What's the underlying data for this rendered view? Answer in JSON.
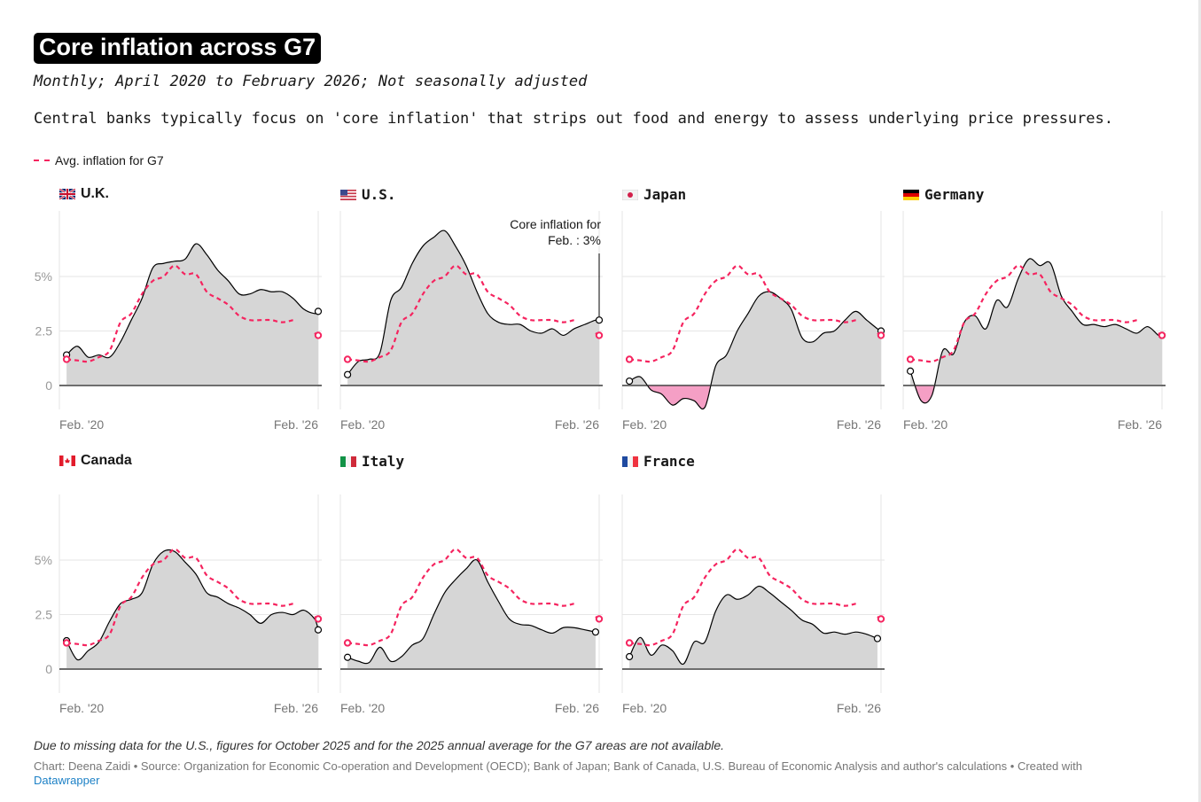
{
  "header": {
    "title": "Core inflation across G7",
    "subtitle": "Monthly; April 2020 to February 2026; Not seasonally adjusted",
    "description": "Central banks typically focus on 'core inflation' that strips out food and energy to assess underlying price pressures."
  },
  "legend": {
    "label": "Avg. inflation for G7",
    "color": "#f5245f"
  },
  "annotation": {
    "line1": "Core inflation for",
    "line2": "Feb. : 3%"
  },
  "footer": {
    "note": "Due to missing data for the U.S., figures for October 2025 and for the 2025 annual average for the G7 areas are not available.",
    "credit": "Chart: Deena Zaidi • Source: Organization for Economic Co-operation and Development (OECD); Bank of Japan; Bank of Canada, U.S. Bureau of Economic Analysis and author's calculations • Created with",
    "link": "Datawrapper"
  },
  "colors": {
    "area": "#d6d6d6",
    "negative_area": "#f59fc5",
    "line": "#000000",
    "g7_line": "#f5245f",
    "link": "#1d81c6"
  },
  "chart_data": {
    "type": "area",
    "layout": "small multiples, 4 columns",
    "ylim": [
      -1.1,
      8
    ],
    "y_ticks": [
      {
        "value": 0,
        "label": "0"
      },
      {
        "value": 2.5,
        "label": "2.5"
      },
      {
        "value": 5,
        "label": "5%"
      }
    ],
    "x_ticks": [
      {
        "date": "2020-02",
        "label": "Feb. '20"
      },
      {
        "date": "2026-02",
        "label": "Feb. '26"
      }
    ],
    "dates": [
      "2020-04",
      "2020-07",
      "2020-10",
      "2021-01",
      "2021-04",
      "2021-07",
      "2021-10",
      "2022-01",
      "2022-04",
      "2022-07",
      "2022-10",
      "2023-01",
      "2023-04",
      "2023-07",
      "2023-10",
      "2024-01",
      "2024-04",
      "2024-07",
      "2024-10",
      "2025-01",
      "2025-04",
      "2025-07",
      "2025-10",
      "2026-01",
      "2026-02"
    ],
    "g7_average": {
      "name": "Avg. inflation for G7",
      "values": [
        1.2,
        1.15,
        1.1,
        1.3,
        1.6,
        2.9,
        3.3,
        4.2,
        4.8,
        5.0,
        5.5,
        5.1,
        5.1,
        4.3,
        4.0,
        3.7,
        3.2,
        3.0,
        3.0,
        3.0,
        2.9,
        3.0,
        null,
        2.4,
        2.3
      ]
    },
    "panels": [
      {
        "country": "U.K.",
        "flag": "uk",
        "values": [
          1.4,
          1.8,
          1.3,
          1.4,
          1.3,
          2.0,
          3.0,
          4.0,
          5.4,
          5.6,
          5.7,
          5.8,
          6.5,
          6.0,
          5.3,
          4.8,
          4.2,
          4.2,
          4.4,
          4.3,
          4.3,
          4.0,
          3.5,
          3.3,
          3.4
        ]
      },
      {
        "country": "U.S.",
        "flag": "us",
        "values": [
          0.5,
          1.1,
          1.2,
          1.5,
          3.9,
          4.5,
          5.6,
          6.4,
          6.8,
          7.1,
          6.4,
          5.5,
          4.3,
          3.3,
          2.9,
          2.8,
          2.8,
          2.5,
          2.4,
          2.6,
          2.3,
          2.6,
          2.8,
          3.0,
          3.0
        ]
      },
      {
        "country": "Japan",
        "flag": "jp",
        "values": [
          0.2,
          0.4,
          -0.2,
          -0.4,
          -0.9,
          -0.6,
          -0.7,
          -1.0,
          0.9,
          1.4,
          2.5,
          3.3,
          4.1,
          4.3,
          4.0,
          3.5,
          2.2,
          2.0,
          2.4,
          2.5,
          3.0,
          3.4,
          3.0,
          2.6,
          2.5
        ]
      },
      {
        "country": "Germany",
        "flag": "de",
        "values": [
          0.66,
          -0.7,
          -0.45,
          1.6,
          1.45,
          2.9,
          3.2,
          2.6,
          3.9,
          3.6,
          4.9,
          5.8,
          5.5,
          5.6,
          4.1,
          3.4,
          2.8,
          2.8,
          2.7,
          2.8,
          2.6,
          2.4,
          2.7,
          2.3,
          2.3
        ]
      },
      {
        "country": "Canada",
        "flag": "ca",
        "values": [
          1.3,
          0.43,
          0.84,
          1.24,
          2.2,
          3.0,
          3.2,
          3.5,
          4.8,
          5.4,
          5.4,
          4.9,
          4.35,
          3.5,
          3.3,
          3.0,
          2.8,
          2.5,
          2.1,
          2.5,
          2.6,
          2.5,
          2.7,
          2.3,
          1.8
        ]
      },
      {
        "country": "Italy",
        "flag": "it",
        "values": [
          0.54,
          0.36,
          0.3,
          1.0,
          0.36,
          0.57,
          1.1,
          1.4,
          2.5,
          3.5,
          4.1,
          4.6,
          5.0,
          4.0,
          3.1,
          2.3,
          2.05,
          2.0,
          1.8,
          1.65,
          1.9,
          1.9,
          1.8,
          1.7,
          null
        ]
      },
      {
        "country": "France",
        "flag": "fr",
        "values": [
          0.57,
          1.45,
          0.64,
          1.1,
          0.84,
          0.23,
          1.24,
          1.24,
          2.66,
          3.4,
          3.2,
          3.4,
          3.8,
          3.5,
          3.1,
          2.7,
          2.25,
          2.05,
          1.65,
          1.7,
          1.6,
          1.7,
          1.6,
          1.4,
          null
        ]
      }
    ]
  }
}
